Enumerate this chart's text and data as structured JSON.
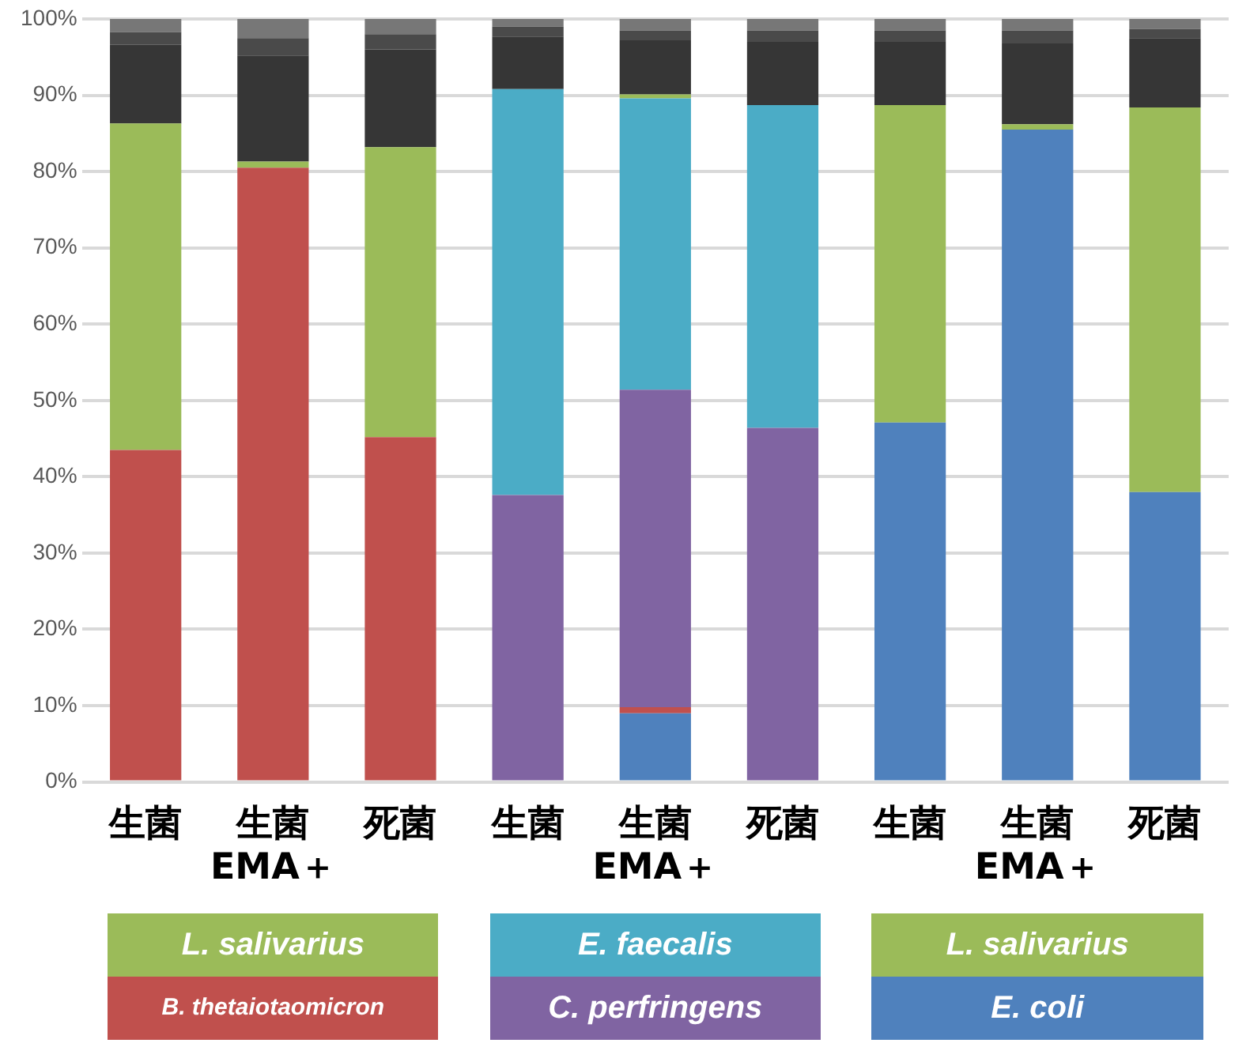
{
  "chart_data": {
    "type": "bar",
    "stacked": true,
    "categories": [
      "生菌",
      "生菌\nEMA＋",
      "死菌",
      "生菌",
      "生菌\nEMA＋",
      "死菌",
      "生菌",
      "生菌\nEMA＋",
      "死菌"
    ],
    "series": [
      {
        "name": "E. coli",
        "color": "#4f81bd",
        "values": [
          0,
          0,
          0,
          0,
          9.0,
          0,
          47.1,
          85.5,
          38.0
        ]
      },
      {
        "name": "B. thetaiotaomicron",
        "color": "#c0504d",
        "values": [
          43.5,
          80.5,
          45.2,
          0,
          0.8,
          0,
          0,
          0,
          0
        ]
      },
      {
        "name": "C. perfringens",
        "color": "#8064a2",
        "values": [
          0,
          0,
          0,
          37.6,
          41.6,
          46.4,
          0,
          0,
          0
        ]
      },
      {
        "name": "E. faecalis",
        "color": "#4bacc6",
        "values": [
          0,
          0,
          0,
          53.2,
          38.2,
          42.3,
          0,
          0,
          0
        ]
      },
      {
        "name": "L. salivarius",
        "color": "#9bbb59",
        "values": [
          42.8,
          0.8,
          38.0,
          0,
          0.5,
          0,
          41.6,
          0.7,
          50.4
        ]
      },
      {
        "color": "#363636",
        "values": [
          10.3,
          13.9,
          12.8,
          6.9,
          7.1,
          8.3,
          8.3,
          10.6,
          9.1
        ]
      },
      {
        "color": "#4a4a4a",
        "values": [
          1.7,
          2.3,
          2.0,
          1.3,
          1.3,
          1.5,
          1.5,
          1.7,
          1.2
        ]
      },
      {
        "color": "#777777",
        "values": [
          1.7,
          2.5,
          2.0,
          1.0,
          1.5,
          1.5,
          1.5,
          1.5,
          1.3
        ]
      }
    ],
    "ylim": [
      0,
      100
    ],
    "yticks": [
      {
        "value": 0,
        "label": "0%"
      },
      {
        "value": 10,
        "label": "10%"
      },
      {
        "value": 20,
        "label": "20%"
      },
      {
        "value": 30,
        "label": "30%"
      },
      {
        "value": 40,
        "label": "40%"
      },
      {
        "value": 50,
        "label": "50%"
      },
      {
        "value": 60,
        "label": "60%"
      },
      {
        "value": 70,
        "label": "70%"
      },
      {
        "value": 80,
        "label": "80%"
      },
      {
        "value": 90,
        "label": "90%"
      },
      {
        "value": 100,
        "label": "100%"
      }
    ],
    "grid": "y",
    "legend": "bottom"
  }
}
